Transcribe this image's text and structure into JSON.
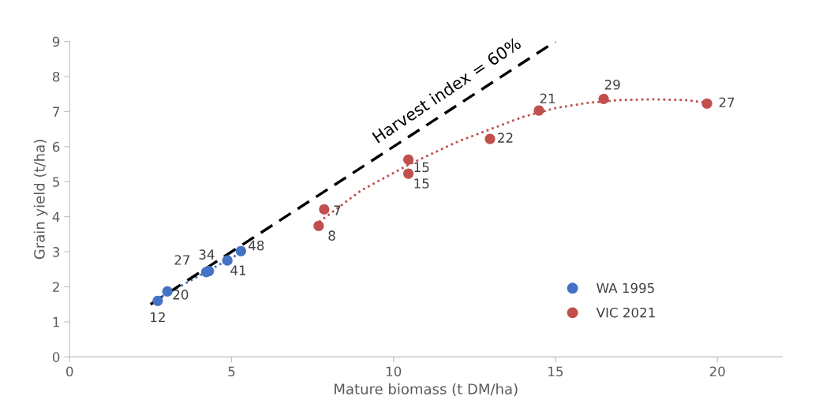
{
  "chart_data": {
    "type": "scatter",
    "xlabel": "Mature biomass (t DM/ha)",
    "ylabel": "Grain yield (t/ha)",
    "xlim": [
      0,
      22
    ],
    "ylim": [
      0,
      9
    ],
    "xticks": [
      0,
      5,
      10,
      15,
      20
    ],
    "yticks": [
      0,
      1,
      2,
      3,
      4,
      5,
      6,
      7,
      8,
      9
    ],
    "grid": false,
    "legend": "bottom right",
    "marker": "circle",
    "series": [
      {
        "name": "WA 1995",
        "color": "#4472c4",
        "x": [
          2.72,
          3.02,
          4.22,
          4.3,
          4.87,
          5.29
        ],
        "values": [
          1.6,
          1.87,
          2.42,
          2.45,
          2.75,
          3.02
        ]
      },
      {
        "name": "VIC 2021",
        "color": "#c0504d",
        "x": [
          7.69,
          7.86,
          10.46,
          10.46,
          12.98,
          14.49,
          16.49,
          19.68
        ],
        "values": [
          3.74,
          4.21,
          5.63,
          5.23,
          6.22,
          7.03,
          7.36,
          7.23
        ]
      },
      {
        "type": "line",
        "color": "#4472c4",
        "line_style": "dotted",
        "marker": "none",
        "x": [
          2.7,
          5.3
        ],
        "values": [
          1.65,
          2.98
        ]
      },
      {
        "type": "line",
        "color": "#c0504d",
        "line_style": "dotted",
        "marker": "none",
        "x": [
          7.7,
          9,
          10.5,
          12,
          13,
          14,
          15,
          16,
          17,
          18,
          19,
          19.7
        ],
        "values": [
          3.85,
          4.75,
          5.5,
          6.15,
          6.5,
          6.85,
          7.1,
          7.25,
          7.33,
          7.35,
          7.33,
          7.25
        ]
      },
      {
        "type": "line",
        "color": "#000000",
        "line_style": "dashed",
        "marker": "none",
        "x": [
          2.5,
          15
        ],
        "values": [
          1.5,
          9
        ]
      }
    ],
    "annotations": [
      {
        "text": "Harvest index = 60%",
        "x": 12,
        "y": 7.2
      },
      {
        "text": "12",
        "x": 2.72,
        "y": 1.6
      },
      {
        "text": "20",
        "x": 3.02,
        "y": 1.87
      },
      {
        "text": "27",
        "x": 4.22,
        "y": 2.42
      },
      {
        "text": "34",
        "x": 4.3,
        "y": 2.45
      },
      {
        "text": "41",
        "x": 4.87,
        "y": 2.75
      },
      {
        "text": "48",
        "x": 5.29,
        "y": 3.02
      },
      {
        "text": "8",
        "x": 7.69,
        "y": 3.74
      },
      {
        "text": "7",
        "x": 7.86,
        "y": 4.21
      },
      {
        "text": "15",
        "x": 10.46,
        "y": 5.63
      },
      {
        "text": "15",
        "x": 10.46,
        "y": 5.23
      },
      {
        "text": "22",
        "x": 12.98,
        "y": 6.22
      },
      {
        "text": "21",
        "x": 14.49,
        "y": 7.03
      },
      {
        "text": "29",
        "x": 16.49,
        "y": 7.36
      },
      {
        "text": "27",
        "x": 19.68,
        "y": 7.23
      }
    ]
  }
}
